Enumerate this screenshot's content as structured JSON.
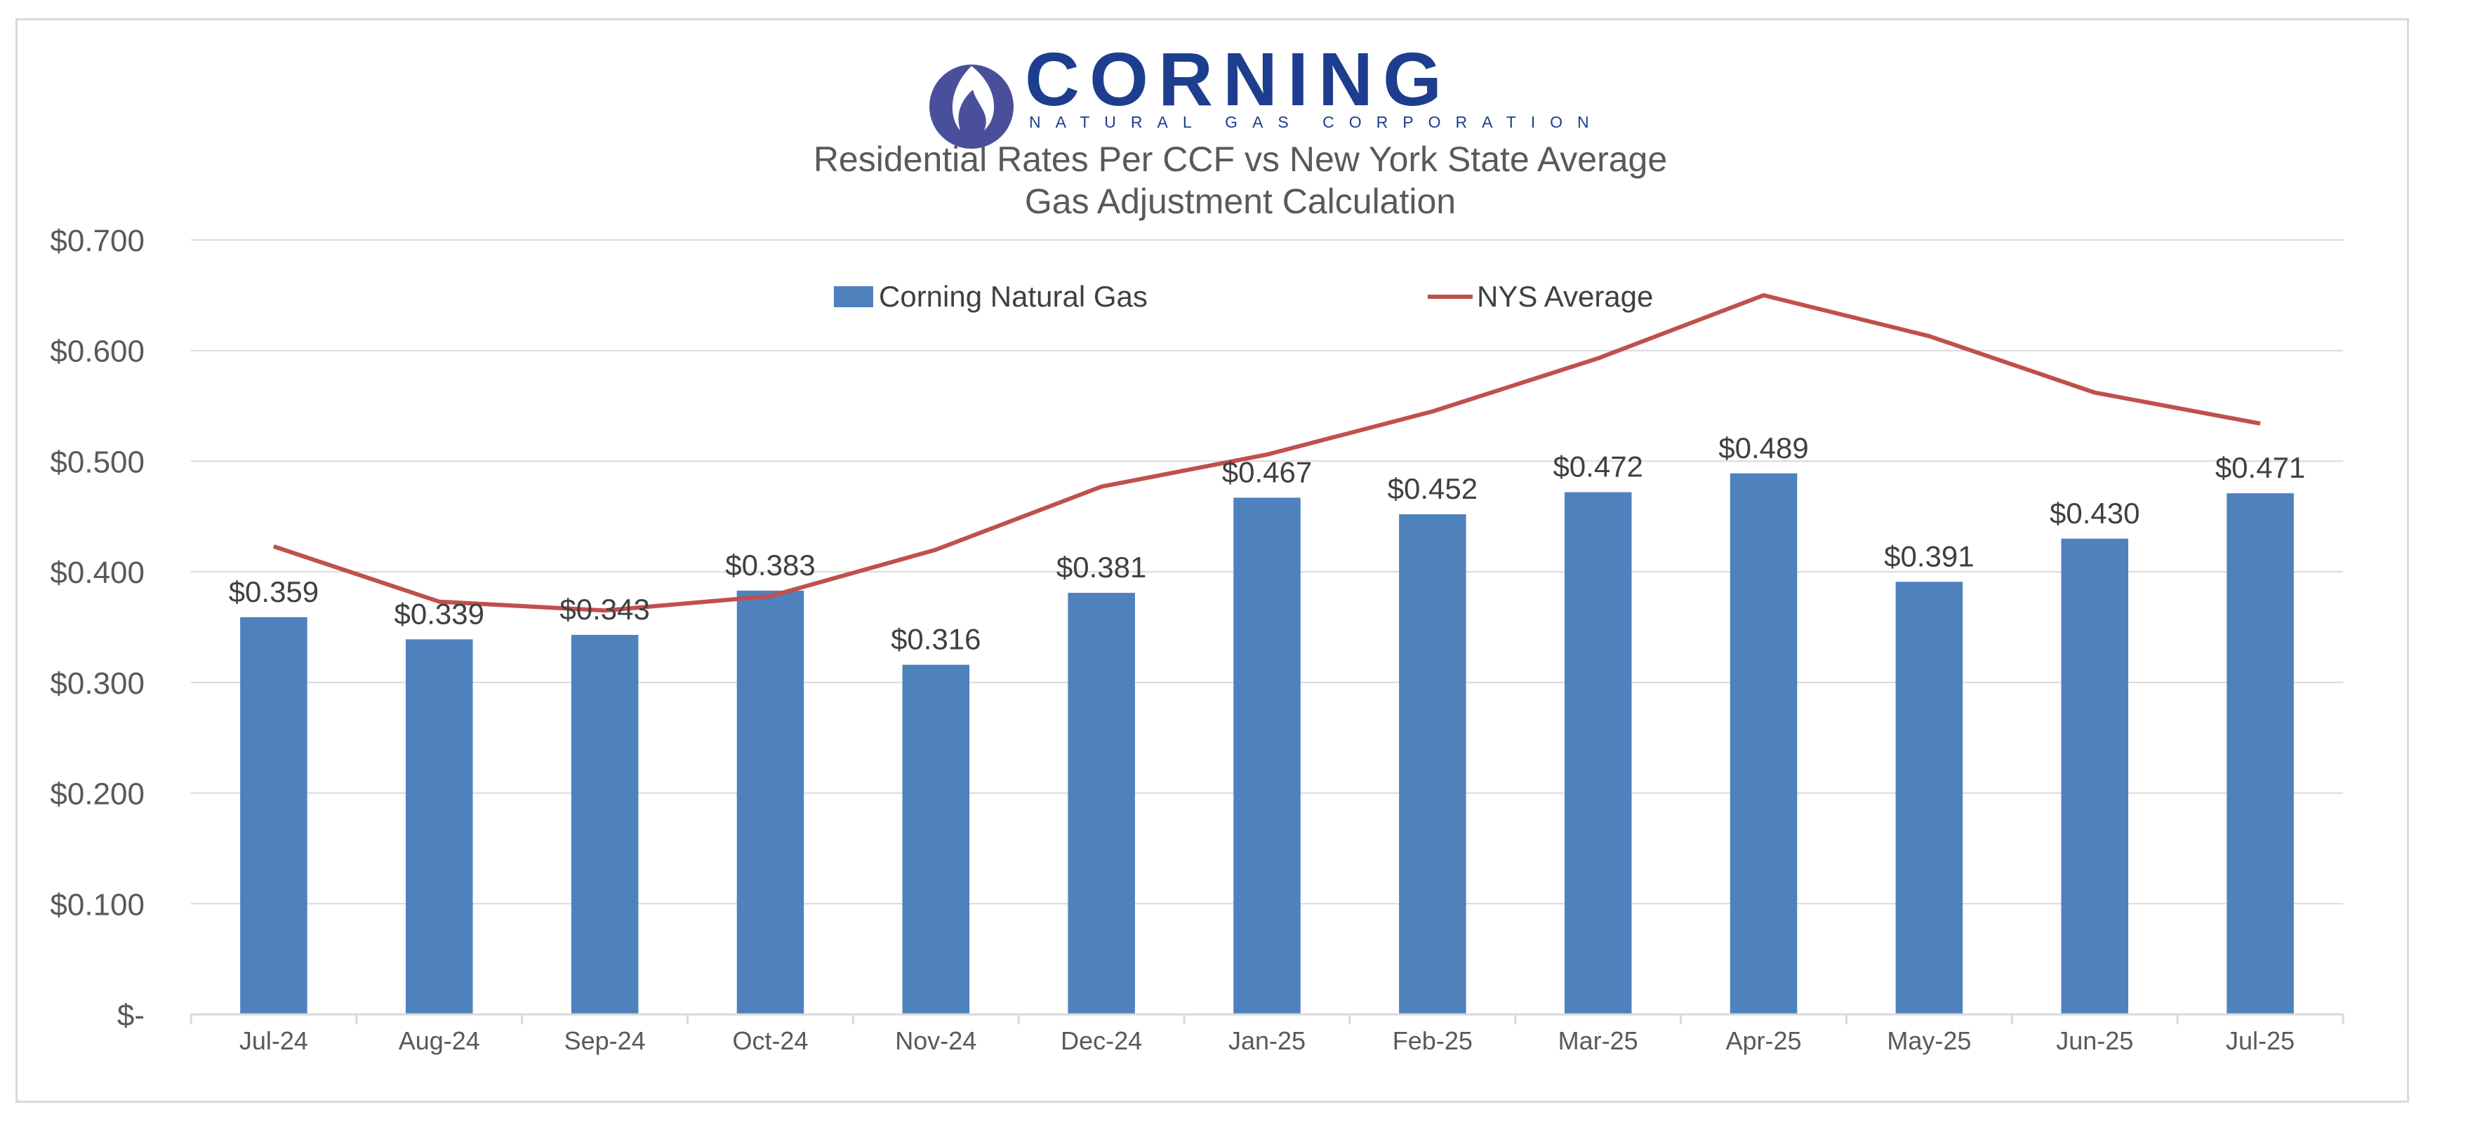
{
  "logo": {
    "name": "CORNING",
    "subtitle": "NATURAL GAS CORPORATION",
    "icon": "flame-icon",
    "color": "#1d3d8f"
  },
  "chart_data": {
    "type": "bar",
    "title_lines": [
      "Residential Rates Per CCF vs New York State Average",
      "Gas Adjustment Calculation"
    ],
    "xlabel": "",
    "ylabel": "",
    "categories": [
      "Jul-24",
      "Aug-24",
      "Sep-24",
      "Oct-24",
      "Nov-24",
      "Dec-24",
      "Jan-25",
      "Feb-25",
      "Mar-25",
      "Apr-25",
      "May-25",
      "Jun-25",
      "Jul-25"
    ],
    "series": [
      {
        "name": "Corning Natural Gas",
        "type": "bar",
        "color": "#4f81bd",
        "values": [
          0.359,
          0.339,
          0.343,
          0.383,
          0.316,
          0.381,
          0.467,
          0.452,
          0.472,
          0.489,
          0.391,
          0.43,
          0.471
        ],
        "labels": [
          "$0.359",
          "$0.339",
          "$0.343",
          "$0.383",
          "$0.316",
          "$0.381",
          "$0.467",
          "$0.452",
          "$0.472",
          "$0.489",
          "$0.391",
          "$0.430",
          "$0.471"
        ]
      },
      {
        "name": "NYS Average",
        "type": "line",
        "color": "#c0504d",
        "values": [
          0.423,
          0.373,
          0.365,
          0.378,
          0.42,
          0.477,
          0.506,
          0.545,
          0.593,
          0.65,
          0.613,
          0.562,
          0.534
        ]
      }
    ],
    "ylim": [
      0,
      0.7
    ],
    "yticks": [
      0,
      0.1,
      0.2,
      0.3,
      0.4,
      0.5,
      0.6,
      0.7
    ],
    "ytick_labels": [
      "$-",
      "$0.100",
      "$0.200",
      "$0.300",
      "$0.400",
      "$0.500",
      "$0.600",
      "$0.700"
    ],
    "grid": true,
    "legend_position": "top-center",
    "gridline_color": "#d9d9d9"
  }
}
